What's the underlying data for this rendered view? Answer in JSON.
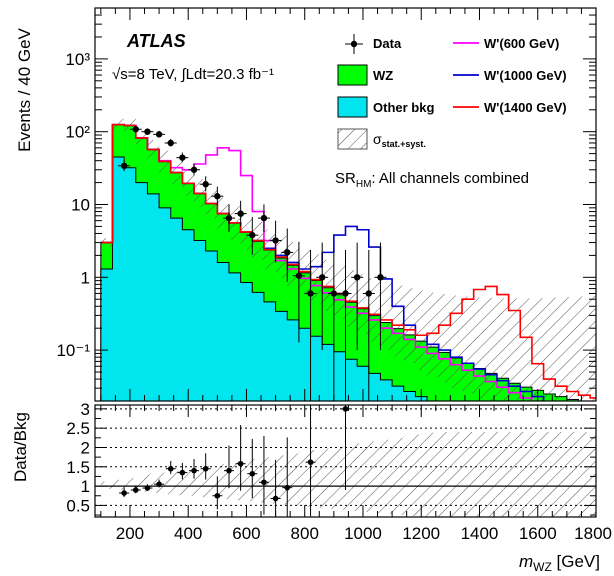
{
  "chart_data": [
    {
      "type": "histogram",
      "panel": "main",
      "ylabel": "Events / 40 GeV",
      "yscale": "log",
      "ylim": [
        0.02,
        5000
      ],
      "xlim": [
        80,
        1800
      ],
      "y_tick_labels": [
        "10⁻¹",
        "1",
        "10",
        "10²",
        "10³"
      ],
      "y_tick_values": [
        0.1,
        1,
        10,
        100,
        1000
      ],
      "atlas_label": "ATLAS",
      "energy_label": "√s=8 TeV, ∫Ldt=20.3 fb⁻¹",
      "region_label": "SR_HM: All channels combined",
      "bin_edges": [
        100,
        140,
        180,
        220,
        260,
        300,
        340,
        380,
        420,
        460,
        500,
        540,
        580,
        620,
        660,
        700,
        740,
        780,
        820,
        860,
        900,
        940,
        980,
        1020,
        1060,
        1100,
        1140,
        1180,
        1220,
        1260,
        1300,
        1340,
        1380,
        1420,
        1460,
        1500,
        1540,
        1580,
        1620,
        1660,
        1700,
        1740,
        1780,
        1800
      ],
      "stack": [
        {
          "name": "Other bkg",
          "color": "#00e5ee",
          "values": [
            1.3,
            45,
            32,
            20,
            14,
            9,
            6.5,
            4.5,
            3.2,
            2.3,
            1.6,
            1.15,
            0.85,
            0.62,
            0.46,
            0.34,
            0.26,
            0.2,
            0.155,
            0.12,
            0.095,
            0.075,
            0.06,
            0.048,
            0.039,
            0.032,
            0.027,
            0.023,
            0.02,
            0.018,
            0.016,
            0.014,
            0.013,
            0.012,
            0.011,
            0.01,
            0.01,
            0.01,
            0.01,
            0.01,
            0.01,
            0.01,
            0.01
          ]
        },
        {
          "name": "WZ",
          "color": "#00ff00",
          "values": [
            1.7,
            80,
            90,
            62,
            43,
            30,
            21,
            15,
            11,
            8,
            5.9,
            4.4,
            3.3,
            2.5,
            1.9,
            1.5,
            1.2,
            0.95,
            0.75,
            0.6,
            0.48,
            0.38,
            0.31,
            0.25,
            0.2,
            0.165,
            0.135,
            0.11,
            0.09,
            0.075,
            0.062,
            0.052,
            0.043,
            0.036,
            0.03,
            0.025,
            0.021,
            0.018,
            0.015,
            0.013,
            0.011,
            0.01,
            0.01
          ]
        }
      ],
      "signals": [
        {
          "name": "W'(600 GeV)",
          "color": "#ff00ff",
          "values": [
            3,
            125,
            122,
            82,
            57,
            40,
            32,
            30,
            36,
            48,
            60,
            55,
            25,
            8,
            3.2,
            1.7,
            1.3,
            0.97,
            0.77,
            0.61,
            0.49,
            0.39,
            0.32,
            0.26,
            0.2,
            0.17,
            0.14,
            0.11,
            0.09,
            0.076,
            0.063,
            0.053,
            0.044,
            0.037,
            0.031,
            0.026,
            0.022,
            0.019,
            0.016,
            0.014,
            0.012,
            0.011,
            0.01
          ]
        },
        {
          "name": "W'(1000 GeV)",
          "color": "#0000cc",
          "values": [
            3,
            125,
            122,
            82,
            57,
            39,
            27.5,
            19.5,
            14.2,
            10.3,
            7.5,
            5.6,
            4.2,
            3.2,
            2.5,
            2.0,
            1.6,
            1.3,
            1.4,
            2.2,
            3.8,
            5.0,
            4.5,
            2.6,
            0.95,
            0.4,
            0.22,
            0.16,
            0.12,
            0.1,
            0.08,
            0.066,
            0.055,
            0.046,
            0.038,
            0.032,
            0.027,
            0.023,
            0.019,
            0.016,
            0.014,
            0.012,
            0.011
          ]
        },
        {
          "name": "W'(1400 GeV)",
          "color": "#ff0000",
          "values": [
            3,
            125,
            122,
            82,
            57,
            39,
            27.5,
            19.5,
            14.2,
            10.3,
            7.5,
            5.6,
            4.2,
            3.2,
            2.4,
            1.9,
            1.5,
            1.2,
            0.93,
            0.75,
            0.6,
            0.47,
            0.38,
            0.31,
            0.26,
            0.22,
            0.19,
            0.16,
            0.17,
            0.22,
            0.32,
            0.5,
            0.68,
            0.75,
            0.58,
            0.35,
            0.15,
            0.065,
            0.04,
            0.032,
            0.027,
            0.024,
            0.022
          ]
        }
      ],
      "data_points": {
        "name": "Data",
        "x": [
          180,
          220,
          260,
          300,
          340,
          380,
          420,
          460,
          500,
          540,
          580,
          620,
          660,
          700,
          740,
          780,
          820,
          860,
          900,
          940,
          980,
          1020,
          1060
        ],
        "y": [
          34,
          108,
          100,
          92,
          70,
          44,
          30,
          19,
          13,
          6.5,
          7.5,
          3.8,
          6.5,
          3.2,
          2.2,
          1.05,
          0.6,
          1.0,
          0.6,
          0.6,
          1.0,
          0.6,
          1.0
        ]
      },
      "legend": [
        {
          "label": "Data",
          "kind": "marker"
        },
        {
          "label": "W'(600 GeV)",
          "kind": "line",
          "color": "#ff00ff"
        },
        {
          "label": "WZ",
          "kind": "box",
          "color": "#00ff00"
        },
        {
          "label": "W'(1000 GeV)",
          "kind": "line",
          "color": "#0000cc"
        },
        {
          "label": "Other bkg",
          "kind": "box",
          "color": "#00e5ee"
        },
        {
          "label": "W'(1400 GeV)",
          "kind": "line",
          "color": "#ff0000"
        },
        {
          "label": "σ_stat.+syst.",
          "kind": "hatch"
        }
      ]
    },
    {
      "type": "scatter",
      "panel": "ratio",
      "ylabel": "Data/Bkg",
      "xlabel": "m_WZ [GeV]",
      "ylim": [
        0.2,
        3.1
      ],
      "y_tick_labels": [
        "0.5",
        "1",
        "1.5",
        "2",
        "2.5",
        "3"
      ],
      "y_tick_values": [
        0.5,
        1,
        1.5,
        2,
        2.5,
        3
      ],
      "x_tick_labels": [
        "200",
        "400",
        "600",
        "800",
        "1000",
        "1200",
        "1400",
        "1600",
        "1800"
      ],
      "x_tick_values": [
        200,
        400,
        600,
        800,
        1000,
        1200,
        1400,
        1600,
        1800
      ],
      "points": {
        "x": [
          180,
          220,
          260,
          300,
          340,
          380,
          420,
          460,
          500,
          540,
          580,
          620,
          660,
          700,
          740,
          820,
          940
        ],
        "y": [
          0.82,
          0.9,
          0.95,
          1.05,
          1.45,
          1.35,
          1.4,
          1.45,
          0.75,
          1.4,
          1.58,
          1.32,
          1.1,
          0.68,
          0.96,
          1.62,
          3.0
        ],
        "err": [
          0.15,
          0.12,
          0.1,
          0.12,
          0.2,
          0.25,
          0.3,
          0.4,
          0.5,
          0.65,
          1.0,
          0.9,
          1.2,
          1.0,
          1.3,
          2.0,
          3.0
        ]
      }
    }
  ]
}
